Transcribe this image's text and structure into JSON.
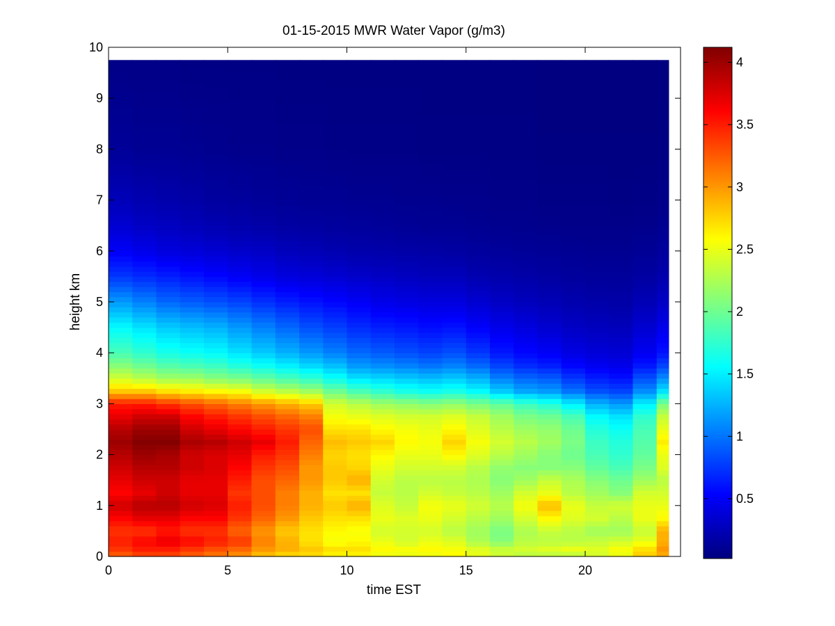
{
  "chart_data": {
    "type": "heatmap",
    "title": "01-15-2015 MWR Water Vapor (g/m3)",
    "xlabel": "time EST",
    "ylabel": "height km",
    "xlim": [
      0,
      24
    ],
    "ylim": [
      0,
      10
    ],
    "x_ticks": [
      0,
      5,
      10,
      15,
      20
    ],
    "y_ticks": [
      0,
      1,
      2,
      3,
      4,
      5,
      6,
      7,
      8,
      9,
      10
    ],
    "colormap": "jet",
    "colorbar": {
      "range": [
        0.02,
        4.12
      ],
      "ticks": [
        0.5,
        1,
        1.5,
        2,
        2.5,
        3,
        3.5,
        4
      ],
      "tick_labels": [
        "0.5",
        "1",
        "1.5",
        "2",
        "2.5",
        "3",
        "3.5",
        "4"
      ]
    },
    "time_edges": [
      0,
      1,
      2,
      3,
      4,
      5,
      6,
      7,
      8,
      9,
      10,
      11,
      12,
      13,
      14,
      15,
      16,
      17,
      18,
      19,
      20,
      21,
      22,
      23,
      23.5
    ],
    "height_max": 9.75,
    "profile_heights": [
      0,
      0.15,
      0.3,
      0.5,
      0.75,
      1.0,
      1.25,
      1.5,
      1.75,
      2.0,
      2.25,
      2.5,
      2.75,
      3.0,
      3.25,
      3.5,
      3.75,
      4.0,
      4.5,
      5.0,
      5.5,
      6.0,
      6.5,
      7.0,
      8.0,
      9.75
    ],
    "profiles": [
      [
        3.2,
        3.4,
        3.5,
        3.4,
        3.6,
        3.8,
        3.6,
        3.7,
        3.8,
        3.9,
        4.0,
        3.9,
        3.7,
        3.5,
        2.8,
        2.4,
        2.1,
        1.85,
        1.55,
        1.15,
        0.75,
        0.5,
        0.35,
        0.25,
        0.12,
        0.05
      ],
      [
        3.3,
        3.5,
        3.6,
        3.4,
        3.7,
        3.9,
        3.7,
        3.8,
        3.9,
        4.0,
        4.1,
        4.0,
        3.8,
        3.5,
        2.8,
        2.3,
        2.0,
        1.75,
        1.45,
        1.05,
        0.7,
        0.45,
        0.3,
        0.22,
        0.1,
        0.05
      ],
      [
        3.3,
        3.5,
        3.7,
        3.5,
        3.7,
        3.9,
        3.8,
        3.8,
        3.9,
        3.95,
        4.1,
        4.0,
        3.8,
        3.4,
        2.7,
        2.2,
        1.9,
        1.65,
        1.35,
        0.95,
        0.65,
        0.4,
        0.28,
        0.2,
        0.1,
        0.05
      ],
      [
        3.2,
        3.4,
        3.6,
        3.4,
        3.6,
        3.8,
        3.7,
        3.7,
        3.8,
        3.8,
        3.95,
        3.8,
        3.6,
        3.3,
        2.65,
        2.2,
        1.85,
        1.6,
        1.3,
        0.9,
        0.6,
        0.38,
        0.25,
        0.18,
        0.09,
        0.04
      ],
      [
        3.1,
        3.3,
        3.5,
        3.4,
        3.6,
        3.75,
        3.7,
        3.7,
        3.75,
        3.75,
        3.9,
        3.7,
        3.5,
        3.2,
        2.6,
        2.1,
        1.8,
        1.55,
        1.25,
        0.85,
        0.55,
        0.35,
        0.22,
        0.15,
        0.08,
        0.04
      ],
      [
        3.0,
        3.2,
        3.4,
        3.2,
        3.4,
        3.5,
        3.4,
        3.5,
        3.6,
        3.7,
        3.8,
        3.6,
        3.4,
        3.1,
        2.55,
        2.05,
        1.7,
        1.45,
        1.15,
        0.8,
        0.5,
        0.32,
        0.2,
        0.14,
        0.07,
        0.04
      ],
      [
        2.8,
        3.0,
        3.1,
        3.0,
        3.2,
        3.3,
        3.3,
        3.3,
        3.4,
        3.5,
        3.7,
        3.5,
        3.3,
        3.0,
        2.4,
        1.95,
        1.6,
        1.35,
        1.05,
        0.72,
        0.45,
        0.3,
        0.18,
        0.12,
        0.07,
        0.04
      ],
      [
        2.7,
        2.9,
        2.9,
        2.8,
        3.0,
        3.1,
        3.1,
        3.2,
        3.3,
        3.4,
        3.5,
        3.4,
        3.2,
        2.9,
        2.3,
        1.85,
        1.5,
        1.25,
        0.95,
        0.65,
        0.4,
        0.26,
        0.16,
        0.11,
        0.06,
        0.03
      ],
      [
        2.7,
        2.8,
        2.7,
        2.7,
        2.8,
        2.9,
        2.9,
        3.0,
        3.0,
        3.1,
        3.2,
        3.3,
        3.1,
        2.8,
        2.2,
        1.75,
        1.4,
        1.15,
        0.85,
        0.6,
        0.38,
        0.24,
        0.15,
        0.1,
        0.06,
        0.03
      ],
      [
        2.6,
        2.7,
        2.55,
        2.6,
        2.7,
        2.8,
        2.7,
        2.8,
        2.8,
        2.75,
        2.85,
        2.7,
        2.55,
        2.4,
        2.0,
        1.6,
        1.3,
        1.05,
        0.78,
        0.55,
        0.35,
        0.22,
        0.14,
        0.1,
        0.05,
        0.03
      ],
      [
        2.6,
        2.7,
        2.6,
        2.55,
        2.7,
        2.9,
        2.7,
        2.9,
        2.75,
        2.7,
        2.8,
        2.7,
        2.5,
        2.3,
        1.85,
        1.45,
        1.15,
        0.95,
        0.7,
        0.5,
        0.32,
        0.2,
        0.13,
        0.09,
        0.05,
        0.03
      ],
      [
        2.5,
        2.6,
        2.5,
        2.4,
        2.5,
        2.45,
        2.35,
        2.4,
        2.5,
        2.6,
        2.75,
        2.6,
        2.45,
        2.2,
        1.75,
        1.4,
        1.1,
        0.9,
        0.65,
        0.45,
        0.3,
        0.19,
        0.12,
        0.09,
        0.05,
        0.03
      ],
      [
        2.5,
        2.55,
        2.4,
        2.4,
        2.45,
        2.35,
        2.3,
        2.3,
        2.4,
        2.5,
        2.6,
        2.55,
        2.4,
        2.15,
        1.65,
        1.35,
        1.05,
        0.85,
        0.62,
        0.42,
        0.28,
        0.18,
        0.11,
        0.08,
        0.05,
        0.03
      ],
      [
        2.5,
        2.6,
        2.5,
        2.4,
        2.5,
        2.55,
        2.4,
        2.3,
        2.4,
        2.5,
        2.55,
        2.5,
        2.4,
        2.1,
        1.6,
        1.3,
        1.0,
        0.8,
        0.58,
        0.4,
        0.26,
        0.17,
        0.1,
        0.08,
        0.04,
        0.03
      ],
      [
        2.6,
        2.55,
        2.45,
        2.3,
        2.4,
        2.5,
        2.35,
        2.3,
        2.4,
        2.6,
        2.75,
        2.6,
        2.45,
        2.15,
        1.65,
        1.35,
        1.05,
        0.85,
        0.6,
        0.4,
        0.26,
        0.16,
        0.1,
        0.07,
        0.04,
        0.03
      ],
      [
        2.5,
        2.45,
        2.25,
        2.2,
        2.3,
        2.4,
        2.3,
        2.25,
        2.3,
        2.45,
        2.55,
        2.45,
        2.35,
        2.05,
        1.55,
        1.25,
        0.95,
        0.75,
        0.52,
        0.35,
        0.22,
        0.14,
        0.09,
        0.07,
        0.04,
        0.03
      ],
      [
        2.4,
        2.35,
        2.1,
        2.05,
        2.2,
        2.3,
        2.2,
        2.1,
        2.15,
        2.3,
        2.4,
        2.3,
        2.2,
        1.95,
        1.35,
        1.05,
        0.8,
        0.62,
        0.45,
        0.3,
        0.2,
        0.13,
        0.08,
        0.06,
        0.04,
        0.03
      ],
      [
        2.3,
        2.4,
        2.3,
        2.25,
        2.4,
        2.55,
        2.4,
        2.2,
        2.1,
        2.2,
        2.3,
        2.2,
        2.05,
        1.8,
        1.2,
        0.95,
        0.7,
        0.55,
        0.4,
        0.27,
        0.18,
        0.12,
        0.08,
        0.06,
        0.04,
        0.03
      ],
      [
        2.3,
        2.45,
        2.3,
        2.35,
        2.6,
        2.85,
        2.5,
        2.35,
        2.1,
        2.1,
        2.2,
        2.15,
        2.0,
        1.7,
        1.15,
        0.9,
        0.65,
        0.5,
        0.35,
        0.24,
        0.16,
        0.11,
        0.07,
        0.05,
        0.03,
        0.02
      ],
      [
        2.3,
        2.5,
        2.3,
        2.3,
        2.45,
        2.5,
        2.3,
        2.25,
        2.1,
        2.0,
        2.05,
        2.0,
        1.85,
        1.5,
        1.0,
        0.75,
        0.55,
        0.42,
        0.3,
        0.21,
        0.14,
        0.1,
        0.06,
        0.05,
        0.03,
        0.02
      ],
      [
        2.4,
        2.45,
        2.35,
        2.2,
        2.4,
        2.35,
        2.2,
        2.1,
        1.95,
        1.85,
        1.8,
        1.7,
        1.55,
        1.25,
        0.85,
        0.65,
        0.48,
        0.38,
        0.27,
        0.19,
        0.13,
        0.09,
        0.06,
        0.05,
        0.03,
        0.02
      ],
      [
        2.5,
        2.55,
        2.4,
        2.2,
        2.3,
        2.4,
        2.1,
        2.0,
        1.85,
        1.75,
        1.7,
        1.6,
        1.45,
        1.15,
        0.8,
        0.6,
        0.45,
        0.36,
        0.26,
        0.18,
        0.13,
        0.09,
        0.06,
        0.04,
        0.03,
        0.02
      ],
      [
        2.8,
        2.7,
        2.5,
        2.35,
        2.5,
        2.5,
        2.4,
        2.2,
        2.05,
        1.95,
        1.9,
        1.85,
        1.75,
        1.5,
        1.1,
        0.85,
        0.62,
        0.48,
        0.35,
        0.24,
        0.16,
        0.11,
        0.07,
        0.05,
        0.03,
        0.02
      ],
      [
        2.9,
        3.0,
        2.9,
        2.9,
        2.6,
        2.5,
        2.4,
        2.3,
        2.45,
        2.5,
        2.65,
        2.5,
        2.35,
        2.05,
        1.45,
        1.1,
        0.8,
        0.6,
        0.45,
        0.3,
        0.2,
        0.14,
        0.09,
        0.06,
        0.04,
        0.02
      ]
    ]
  }
}
